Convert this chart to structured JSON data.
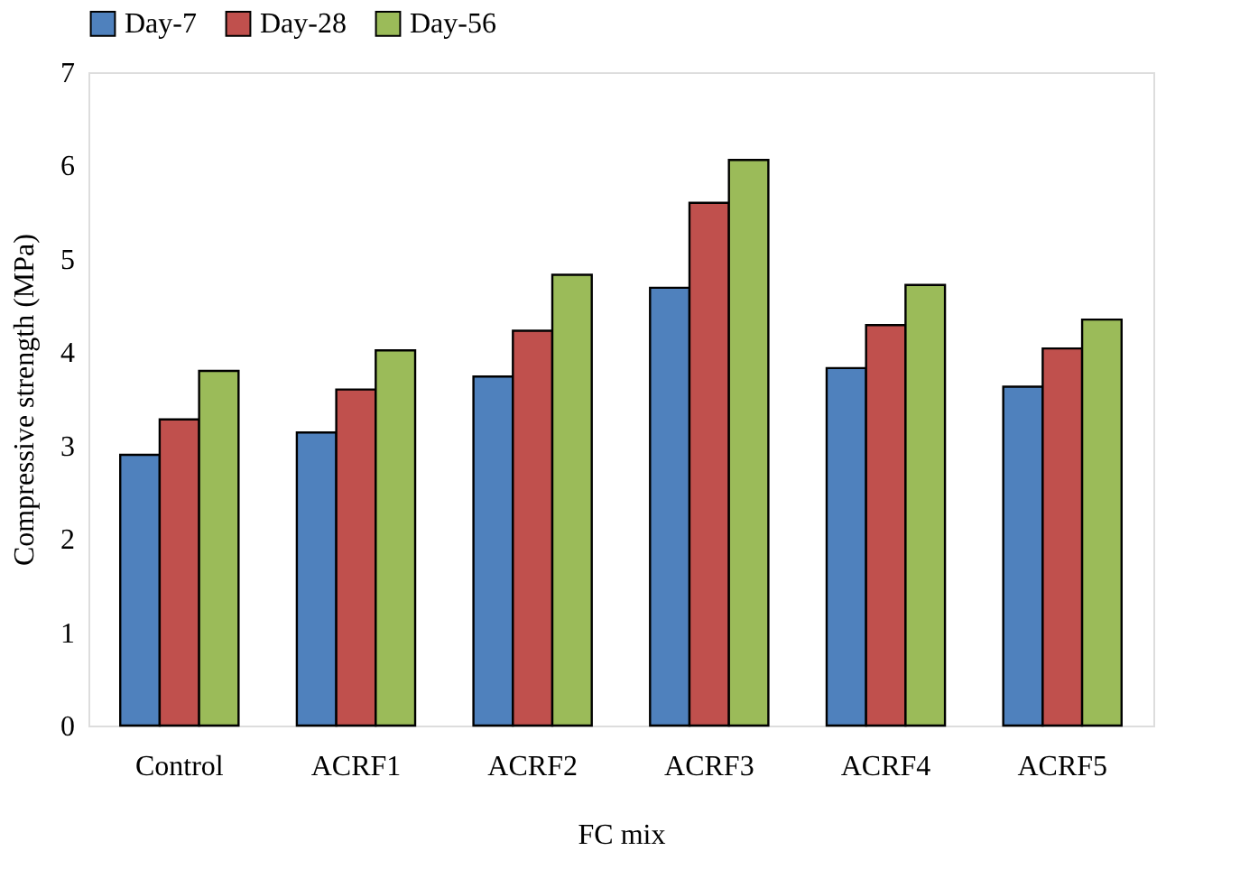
{
  "chart_data": {
    "type": "bar",
    "xlabel": "FC mix",
    "ylabel": "Compressive strength (MPa)",
    "categories": [
      "Control",
      "ACRF1",
      "ACRF2",
      "ACRF3",
      "ACRF4",
      "ACRF5"
    ],
    "series": [
      {
        "name": "Day-7",
        "color": "#4f81bd",
        "values": [
          2.9,
          3.14,
          3.74,
          4.69,
          3.83,
          3.63
        ]
      },
      {
        "name": "Day-28",
        "color": "#c0504d",
        "values": [
          3.28,
          3.6,
          4.23,
          5.6,
          4.29,
          4.04
        ]
      },
      {
        "name": "Day-56",
        "color": "#9bbb59",
        "values": [
          3.8,
          4.02,
          4.83,
          6.06,
          4.72,
          4.35
        ]
      }
    ],
    "ylim": [
      0,
      7
    ],
    "yticks": [
      0,
      1,
      2,
      3,
      4,
      5,
      6,
      7
    ],
    "grid": false,
    "legend": "top"
  }
}
